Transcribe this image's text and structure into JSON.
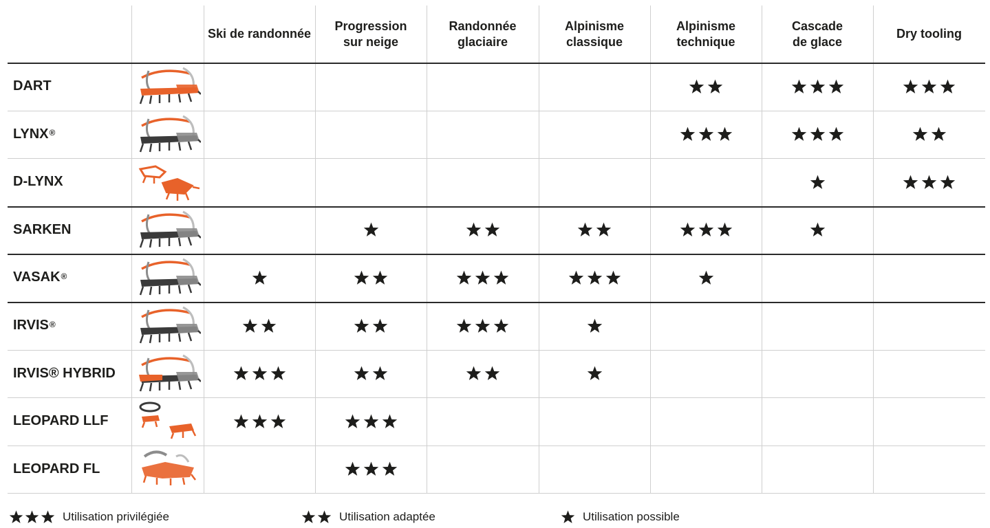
{
  "columns": [
    "Ski de randonnée",
    "Progression\nsur neige",
    "Randonnée\nglaciaire",
    "Alpinisme\nclassique",
    "Alpinisme\ntechnique",
    "Cascade\nde glace",
    "Dry tooling"
  ],
  "rows": [
    {
      "name": "DART",
      "reg": false,
      "thumb": "dart-crampon-icon",
      "ratings": [
        0,
        0,
        0,
        0,
        2,
        3,
        3
      ]
    },
    {
      "name": "LYNX",
      "reg": true,
      "thumb": "lynx-crampon-icon",
      "ratings": [
        0,
        0,
        0,
        0,
        3,
        3,
        2
      ]
    },
    {
      "name": "D-LYNX",
      "reg": false,
      "thumb": "d-lynx-crampon-icon",
      "ratings": [
        0,
        0,
        0,
        0,
        0,
        1,
        3
      ]
    },
    {
      "name": "SARKEN",
      "reg": false,
      "thumb": "sarken-crampon-icon",
      "ratings": [
        0,
        1,
        2,
        2,
        3,
        1,
        0
      ]
    },
    {
      "name": "VASAK",
      "reg": true,
      "thumb": "vasak-crampon-icon",
      "ratings": [
        1,
        2,
        3,
        3,
        1,
        0,
        0
      ]
    },
    {
      "name": "IRVIS",
      "reg": true,
      "thumb": "irvis-crampon-icon",
      "ratings": [
        2,
        2,
        3,
        1,
        0,
        0,
        0
      ]
    },
    {
      "name": "IRVIS® HYBRID",
      "reg": false,
      "thumb": "irvis-hybrid-crampon-icon",
      "ratings": [
        3,
        2,
        2,
        1,
        0,
        0,
        0
      ]
    },
    {
      "name": "LEOPARD LLF",
      "reg": false,
      "thumb": "leopard-llf-crampon-icon",
      "ratings": [
        3,
        3,
        0,
        0,
        0,
        0,
        0
      ]
    },
    {
      "name": "LEOPARD FL",
      "reg": false,
      "thumb": "leopard-fl-crampon-icon",
      "ratings": [
        0,
        3,
        0,
        0,
        0,
        0,
        0
      ]
    }
  ],
  "registered_mark": "®",
  "legend": [
    {
      "stars": 3,
      "label": "Utilisation privilégiée"
    },
    {
      "stars": 2,
      "label": "Utilisation adaptée"
    },
    {
      "stars": 1,
      "label": "Utilisation possible"
    }
  ],
  "colors": {
    "star": "#1d1d1b",
    "crampon_orange": "#e8622a",
    "crampon_grey": "#8c8c8c",
    "grid_line": "#cfcfcf",
    "group_divider": "#2a2a2a"
  }
}
